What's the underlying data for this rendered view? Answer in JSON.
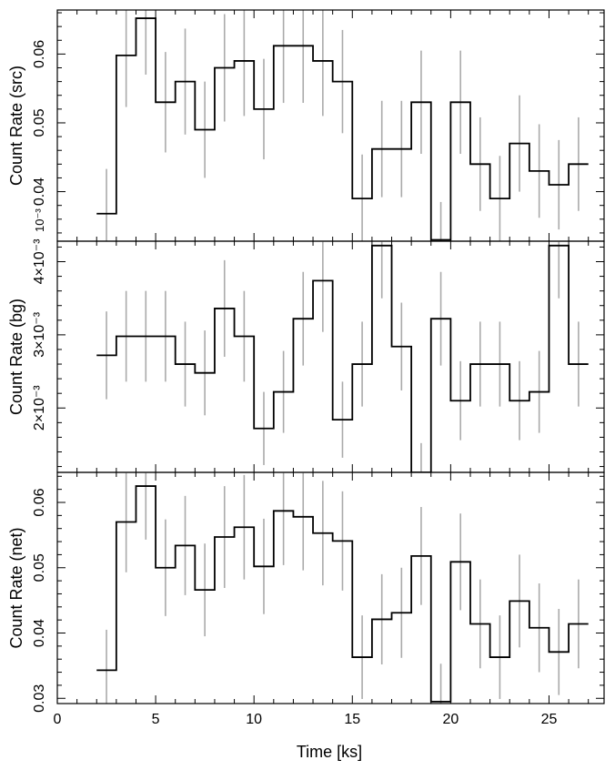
{
  "figure": {
    "xlabel": "Time [ks]",
    "x_tick_labels": [
      "0",
      "5",
      "10",
      "15",
      "20",
      "25"
    ]
  },
  "chart_data": [
    {
      "type": "line",
      "step": true,
      "ylabel": "Count Rate (src)",
      "xlim": [
        0,
        27.8
      ],
      "ylim": [
        0.0328,
        0.0664
      ],
      "y_ticks": [
        0.04,
        0.05,
        0.06
      ],
      "y_tick_labels": [
        "0.04",
        "0.05",
        "0.06"
      ],
      "y_multiplier_label": "10⁻³",
      "line_color": "#000000",
      "error_color": "#aaaaaa",
      "series": [
        {
          "x": [
            2.5,
            3.5,
            4.5,
            5.5,
            6.5,
            7.5,
            8.5,
            9.5,
            10.5,
            11.5,
            12.5,
            13.5,
            14.5,
            15.5,
            16.5,
            17.5,
            18.5,
            19.5,
            20.5,
            21.5,
            22.5,
            23.5,
            24.5,
            25.5,
            26.5
          ],
          "y": [
            0.0368,
            0.0598,
            0.0652,
            0.053,
            0.056,
            0.049,
            0.058,
            0.059,
            0.052,
            0.0612,
            0.0612,
            0.059,
            0.056,
            0.039,
            0.0462,
            0.0462,
            0.053,
            0.033,
            0.053,
            0.044,
            0.039,
            0.047,
            0.043,
            0.041,
            0.044
          ],
          "err": [
            0.0065,
            0.0075,
            0.0082,
            0.0073,
            0.0077,
            0.007,
            0.0078,
            0.008,
            0.0073,
            0.0083,
            0.0083,
            0.008,
            0.0075,
            0.0064,
            0.007,
            0.007,
            0.0075,
            0.0055,
            0.0075,
            0.0068,
            0.0062,
            0.007,
            0.0068,
            0.0065,
            0.0068
          ]
        }
      ]
    },
    {
      "type": "line",
      "step": true,
      "ylabel": "Count Rate (bg)",
      "xlim": [
        0,
        27.8
      ],
      "ylim": [
        0.00112,
        0.00428
      ],
      "y_ticks": [
        0.002,
        0.003,
        0.004
      ],
      "y_tick_labels": [
        "2×10⁻³",
        "3×10⁻³",
        "4×10⁻³"
      ],
      "line_color": "#000000",
      "error_color": "#aaaaaa",
      "series": [
        {
          "x": [
            2.5,
            3.5,
            4.5,
            5.5,
            6.5,
            7.5,
            8.5,
            9.5,
            10.5,
            11.5,
            12.5,
            13.5,
            14.5,
            15.5,
            16.5,
            17.5,
            18.5,
            19.5,
            20.5,
            21.5,
            22.5,
            23.5,
            24.5,
            25.5,
            26.5
          ],
          "y": [
            0.00272,
            0.00298,
            0.00298,
            0.00298,
            0.0026,
            0.00248,
            0.00336,
            0.00298,
            0.00172,
            0.00222,
            0.00322,
            0.00374,
            0.00184,
            0.0026,
            0.00422,
            0.00284,
            0.00112,
            0.00322,
            0.0021,
            0.0026,
            0.0026,
            0.0021,
            0.00222,
            0.00422,
            0.0026
          ],
          "err": [
            0.0006,
            0.00062,
            0.00062,
            0.00062,
            0.00058,
            0.00058,
            0.00066,
            0.00062,
            0.0005,
            0.00056,
            0.00064,
            0.0007,
            0.00052,
            0.00058,
            0.00072,
            0.0006,
            0.0004,
            0.00064,
            0.00054,
            0.00058,
            0.00058,
            0.00054,
            0.00056,
            0.00072,
            0.00058
          ]
        }
      ]
    },
    {
      "type": "line",
      "step": true,
      "ylabel": "Count Rate (net)",
      "xlim": [
        0,
        27.8
      ],
      "ylim": [
        0.0292,
        0.0646
      ],
      "y_ticks": [
        0.03,
        0.04,
        0.05,
        0.06
      ],
      "y_tick_labels": [
        "0.03",
        "0.04",
        "0.05",
        "0.06"
      ],
      "line_color": "#000000",
      "error_color": "#aaaaaa",
      "series": [
        {
          "x": [
            2.5,
            3.5,
            4.5,
            5.5,
            6.5,
            7.5,
            8.5,
            9.5,
            10.5,
            11.5,
            12.5,
            13.5,
            14.5,
            15.5,
            16.5,
            17.5,
            18.5,
            19.5,
            20.5,
            21.5,
            22.5,
            23.5,
            24.5,
            25.5,
            26.5
          ],
          "y": [
            0.0343,
            0.057,
            0.0625,
            0.05,
            0.0534,
            0.0466,
            0.0547,
            0.0562,
            0.0502,
            0.0587,
            0.0578,
            0.0553,
            0.0541,
            0.0363,
            0.0421,
            0.0431,
            0.0518,
            0.0295,
            0.0509,
            0.0414,
            0.0363,
            0.0449,
            0.0408,
            0.0371,
            0.0414
          ],
          "err": [
            0.0062,
            0.0077,
            0.0082,
            0.0074,
            0.0076,
            0.0071,
            0.0078,
            0.008,
            0.0073,
            0.0083,
            0.0082,
            0.008,
            0.0076,
            0.0064,
            0.0069,
            0.0069,
            0.0075,
            0.0058,
            0.0074,
            0.0068,
            0.0064,
            0.0071,
            0.0068,
            0.0066,
            0.0068
          ]
        }
      ]
    }
  ]
}
